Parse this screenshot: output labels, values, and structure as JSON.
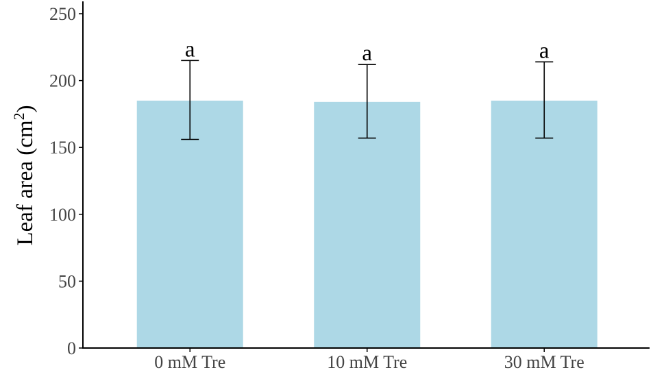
{
  "chart_data": {
    "type": "bar",
    "categories": [
      "0 mM Tre",
      "10 mM Tre",
      "30 mM Tre"
    ],
    "series": [
      {
        "values": [
          185,
          184,
          185
        ],
        "error_upper": [
          215,
          212,
          214
        ],
        "error_lower": [
          156,
          157,
          157
        ],
        "significance": [
          "a",
          "a",
          "a"
        ]
      }
    ],
    "title": "",
    "xlabel": "",
    "ylabel": "Leaf area (cm",
    "ylabel_superscript": "2",
    "ylabel_suffix": ")",
    "ylim": [
      0,
      260
    ],
    "yticks": [
      0,
      50,
      100,
      150,
      200,
      250
    ],
    "ytick_labels": [
      "0",
      "50",
      "100",
      "150",
      "200",
      "250"
    ],
    "grid": false,
    "bar_color": "#add8e6",
    "axis_color": "#000000",
    "tick_label_color": "#444444"
  }
}
